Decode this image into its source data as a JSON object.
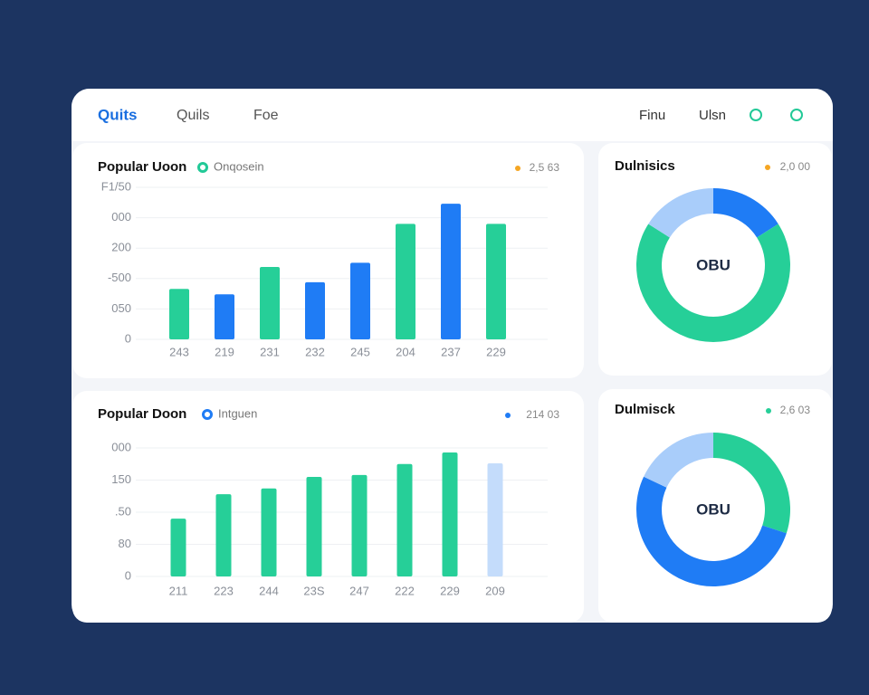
{
  "nav": {
    "tabs": [
      "Quits",
      "Quils",
      "Foe"
    ],
    "links": [
      "Finu",
      "Ulsn"
    ]
  },
  "chart_data": [
    {
      "type": "bar",
      "title": "Popular Uoon",
      "legend_label": "Onqosein",
      "legend_color": "#22c997",
      "badge": "2,5 63",
      "badge_color": "#f5a623",
      "categories": [
        "243",
        "219",
        "231",
        "232",
        "245",
        "204",
        "237",
        "229"
      ],
      "values": [
        83,
        74,
        119,
        94,
        126,
        190,
        223,
        190
      ],
      "colors": [
        "#26cf98",
        "#1f7cf5",
        "#26cf98",
        "#1f7cf5",
        "#1f7cf5",
        "#26cf98",
        "#1f7cf5",
        "#26cf98"
      ],
      "ylim": [
        0,
        250
      ],
      "yticks": [
        0,
        {
          "value": 50,
          "label": "050"
        },
        {
          "value": 100,
          "label": "-500"
        },
        {
          "value": 150,
          "label": "200"
        },
        {
          "value": 200,
          "label": "000"
        },
        {
          "value": 250,
          "label": "F1/50"
        }
      ],
      "grid": true
    },
    {
      "type": "bar",
      "title": "Popular Doon",
      "legend_label": "Intguen",
      "legend_color": "#1f7cf5",
      "badge": "214 03",
      "badge_color": "#1f7cf5",
      "categories": [
        "211",
        "223",
        "244",
        "23S",
        "247",
        "222",
        "229",
        "209"
      ],
      "values": [
        90,
        128,
        137,
        155,
        158,
        175,
        193,
        176
      ],
      "colors": [
        "#26cf98",
        "#26cf98",
        "#26cf98",
        "#26cf98",
        "#26cf98",
        "#26cf98",
        "#26cf98",
        "#c4dcfb"
      ],
      "ylim": [
        0,
        200
      ],
      "yticks": [
        0,
        {
          "value": 50,
          "label": "80"
        },
        {
          "value": 100,
          "label": ".50"
        },
        {
          "value": 150,
          "label": "150"
        },
        {
          "value": 200,
          "label": "000"
        }
      ],
      "grid": true
    },
    {
      "type": "pie",
      "title": "Dulnisics",
      "badge": "2,0 00",
      "badge_color": "#f5a623",
      "center_label": "OBU",
      "values": [
        16,
        68,
        16
      ],
      "colors": [
        "#1f7cf5",
        "#26cf98",
        "#a9cdfa"
      ]
    },
    {
      "type": "pie",
      "title": "Dulmisck",
      "badge": "2,6 03",
      "badge_color": "#26cf98",
      "center_label": "OBU",
      "values": [
        30,
        52,
        18
      ],
      "colors": [
        "#26cf98",
        "#1f7cf5",
        "#a9cdfa"
      ]
    }
  ]
}
